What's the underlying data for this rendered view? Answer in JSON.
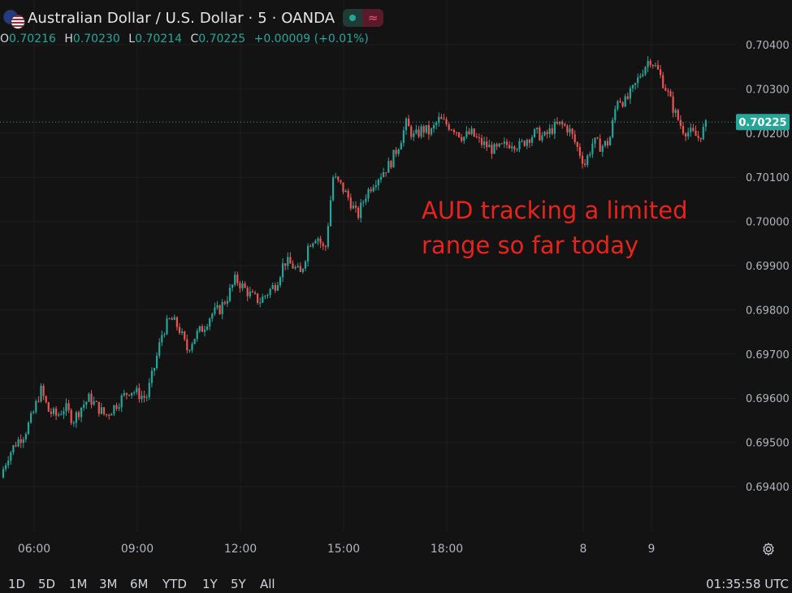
{
  "header": {
    "title": "Australian Dollar / U.S. Dollar · 5 · OANDA",
    "pill_wave": "≈",
    "ohlc": [
      {
        "k": "O",
        "v": "0.70216"
      },
      {
        "k": "H",
        "v": "0.70230"
      },
      {
        "k": "L",
        "v": "0.70214"
      },
      {
        "k": "C",
        "v": "0.70225"
      },
      {
        "k": "",
        "v": "+0.00009 (+0.01%)"
      }
    ]
  },
  "chart_data": {
    "type": "candlestick",
    "ylim": [
      0.693,
      0.7047
    ],
    "yticks": [
      "0.70400",
      "0.70300",
      "0.70200",
      "0.70100",
      "0.70000",
      "0.69900",
      "0.69800",
      "0.69700",
      "0.69600",
      "0.69500",
      "0.69400"
    ],
    "xticks": [
      "06:00",
      "09:00",
      "12:00",
      "15:00",
      "18:00",
      "8",
      "9"
    ],
    "last_price": "0.70225",
    "annotation": "AUD tracking a limited range so far today",
    "annotation_lines": [
      "AUD tracking a limited",
      "range so far today"
    ],
    "colors": {
      "up": "#26a69a",
      "down": "#ef5350",
      "annotation": "#e8231b",
      "grid": "#1e1e1e",
      "last": "#26a69a"
    },
    "path_anchors": [
      [
        0,
        0.6942
      ],
      [
        10,
        0.6947
      ],
      [
        20,
        0.695
      ],
      [
        30,
        0.6952
      ],
      [
        40,
        0.6956
      ],
      [
        50,
        0.6962
      ],
      [
        60,
        0.6957
      ],
      [
        70,
        0.6956
      ],
      [
        80,
        0.6958
      ],
      [
        90,
        0.6955
      ],
      [
        100,
        0.6958
      ],
      [
        110,
        0.696
      ],
      [
        120,
        0.6958
      ],
      [
        130,
        0.6956
      ],
      [
        140,
        0.6958
      ],
      [
        150,
        0.696
      ],
      [
        160,
        0.6962
      ],
      [
        170,
        0.6961
      ],
      [
        180,
        0.696
      ],
      [
        190,
        0.6967
      ],
      [
        200,
        0.6975
      ],
      [
        210,
        0.6978
      ],
      [
        220,
        0.6976
      ],
      [
        230,
        0.6971
      ],
      [
        240,
        0.6974
      ],
      [
        250,
        0.6976
      ],
      [
        260,
        0.6979
      ],
      [
        270,
        0.698
      ],
      [
        280,
        0.6983
      ],
      [
        290,
        0.6987
      ],
      [
        300,
        0.6985
      ],
      [
        310,
        0.6983
      ],
      [
        320,
        0.6982
      ],
      [
        330,
        0.6984
      ],
      [
        340,
        0.6986
      ],
      [
        350,
        0.6991
      ],
      [
        360,
        0.699
      ],
      [
        370,
        0.6988
      ],
      [
        380,
        0.6995
      ],
      [
        390,
        0.6997
      ],
      [
        400,
        0.6993
      ],
      [
        410,
        0.701
      ],
      [
        420,
        0.7008
      ],
      [
        430,
        0.7005
      ],
      [
        440,
        0.7001
      ],
      [
        450,
        0.7006
      ],
      [
        460,
        0.7009
      ],
      [
        470,
        0.7011
      ],
      [
        480,
        0.7013
      ],
      [
        490,
        0.7017
      ],
      [
        500,
        0.7022
      ],
      [
        510,
        0.7019
      ],
      [
        520,
        0.7021
      ],
      [
        530,
        0.702
      ],
      [
        540,
        0.7023
      ],
      [
        550,
        0.7022
      ],
      [
        560,
        0.7021
      ],
      [
        570,
        0.7019
      ],
      [
        580,
        0.702
      ],
      [
        590,
        0.7018
      ],
      [
        600,
        0.7017
      ],
      [
        610,
        0.7016
      ],
      [
        620,
        0.7017
      ],
      [
        630,
        0.7018
      ],
      [
        640,
        0.7017
      ],
      [
        650,
        0.7019
      ],
      [
        660,
        0.702
      ],
      [
        670,
        0.7019
      ],
      [
        680,
        0.7021
      ],
      [
        690,
        0.7022
      ],
      [
        700,
        0.7021
      ],
      [
        710,
        0.7017
      ],
      [
        720,
        0.7013
      ],
      [
        730,
        0.7018
      ],
      [
        740,
        0.7017
      ],
      [
        750,
        0.7018
      ],
      [
        760,
        0.7028
      ],
      [
        770,
        0.7027
      ],
      [
        780,
        0.703
      ],
      [
        790,
        0.7034
      ],
      [
        800,
        0.7037
      ],
      [
        810,
        0.7034
      ],
      [
        820,
        0.703
      ],
      [
        830,
        0.7025
      ],
      [
        840,
        0.7021
      ],
      [
        850,
        0.702
      ],
      [
        860,
        0.7019
      ],
      [
        872,
        0.70225
      ]
    ]
  },
  "footer": {
    "timeframes": [
      "1D",
      "5D",
      "1M",
      "3M",
      "6M",
      "YTD",
      "1Y",
      "5Y",
      "All"
    ],
    "clock": "01:35:58 UTC"
  }
}
